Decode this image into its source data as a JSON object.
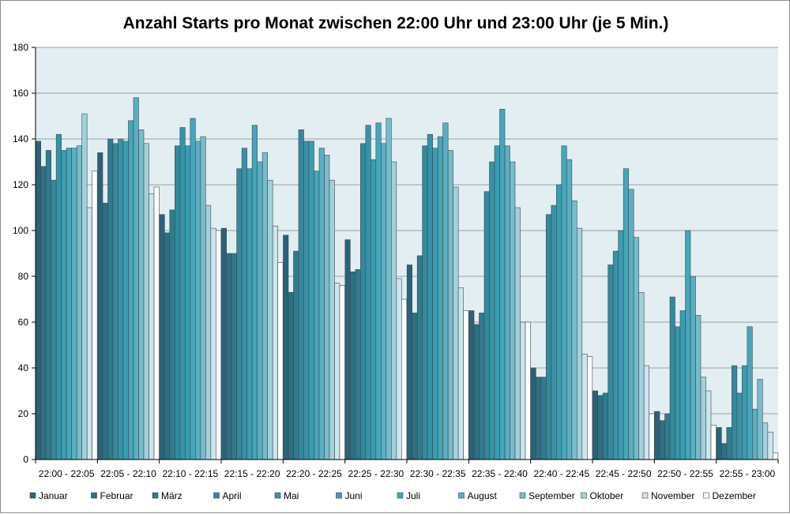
{
  "chart_data": {
    "type": "bar",
    "title": "Anzahl Starts pro Monat zwischen 22:00 Uhr und 23:00 Uhr (je 5 Min.)",
    "xlabel": "",
    "ylabel": "",
    "ylim": [
      0,
      180
    ],
    "yticks": [
      "0",
      "20",
      "40",
      "60",
      "80",
      "100",
      "120",
      "140",
      "160",
      "180"
    ],
    "grid": true,
    "legend": "bottom",
    "categories": [
      "22:00 - 22:05",
      "22:05 - 22:10",
      "22:10 - 22:15",
      "22:15 - 22:20",
      "22:20 - 22:25",
      "22:25 - 22:30",
      "22:30 - 22:35",
      "22:35 - 22:40",
      "22:40 - 22:45",
      "22:45 - 22:50",
      "22:50 - 22:55",
      "22:55 - 23:00"
    ],
    "series": [
      {
        "name": "Januar",
        "color": "#2a6377",
        "values": [
          139,
          134,
          107,
          101,
          98,
          96,
          85,
          65,
          40,
          30,
          21,
          14
        ]
      },
      {
        "name": "Februar",
        "color": "#2e6f83",
        "values": [
          128,
          112,
          99,
          90,
          73,
          82,
          64,
          59,
          36,
          28,
          17,
          7
        ]
      },
      {
        "name": "März",
        "color": "#307b8e",
        "values": [
          135,
          140,
          109,
          90,
          91,
          83,
          89,
          64,
          36,
          29,
          20,
          14
        ]
      },
      {
        "name": "April",
        "color": "#35899d",
        "values": [
          122,
          138,
          137,
          127,
          144,
          138,
          137,
          117,
          107,
          85,
          71,
          41
        ]
      },
      {
        "name": "Mai",
        "color": "#3793a7",
        "values": [
          142,
          140,
          145,
          136,
          139,
          146,
          142,
          130,
          111,
          91,
          58,
          29
        ]
      },
      {
        "name": "Juni",
        "color": "#3a9db2",
        "values": [
          135,
          139,
          137,
          127,
          139,
          131,
          136,
          137,
          120,
          100,
          65,
          41
        ]
      },
      {
        "name": "Juli",
        "color": "#46a6ba",
        "values": [
          136,
          148,
          149,
          146,
          126,
          147,
          141,
          153,
          137,
          127,
          100,
          58
        ]
      },
      {
        "name": "August",
        "color": "#5aafc2",
        "values": [
          136,
          158,
          139,
          130,
          136,
          138,
          147,
          137,
          131,
          118,
          80,
          22
        ]
      },
      {
        "name": "September",
        "color": "#78bccb",
        "values": [
          137,
          144,
          141,
          134,
          133,
          149,
          135,
          130,
          113,
          97,
          63,
          35
        ]
      },
      {
        "name": "Oktober",
        "color": "#a3d0da",
        "values": [
          151,
          138,
          111,
          122,
          122,
          130,
          119,
          110,
          101,
          73,
          36,
          16
        ]
      },
      {
        "name": "November",
        "color": "#cde5ec",
        "values": [
          110,
          116,
          101,
          102,
          77,
          79,
          75,
          60,
          46,
          41,
          30,
          12
        ]
      },
      {
        "name": "Dezember",
        "color": "#ffffff",
        "values": [
          126,
          119,
          100,
          86,
          76,
          70,
          65,
          60,
          45,
          20,
          15,
          3
        ]
      }
    ]
  }
}
